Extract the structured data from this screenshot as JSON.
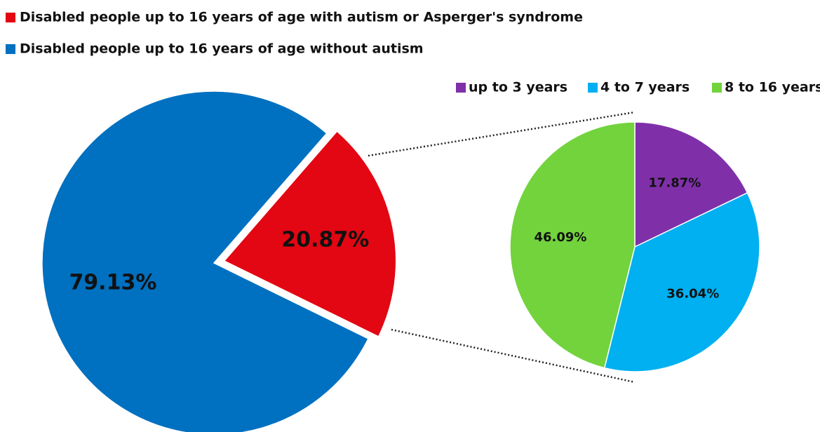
{
  "chart_data": [
    {
      "type": "pie",
      "categories": [
        "Disabled people up to 16 years of age with autism or Asperger's syndrome",
        "Disabled people up to 16 years of age without autism"
      ],
      "values": [
        20.87,
        79.13
      ],
      "value_labels": [
        "20.87%",
        "79.13%"
      ],
      "colors": [
        "#e30613",
        "#0070c0"
      ],
      "legend": "top-left"
    },
    {
      "type": "pie",
      "categories": [
        "up to 3 years",
        "4 to 7 years",
        "8 to 16 years"
      ],
      "values": [
        17.87,
        36.04,
        46.09
      ],
      "value_labels": [
        "17.87%",
        "36.04%",
        "46.09%"
      ],
      "colors": [
        "#7f30a8",
        "#00b0f0",
        "#72d33c"
      ],
      "legend": "top-right"
    }
  ]
}
